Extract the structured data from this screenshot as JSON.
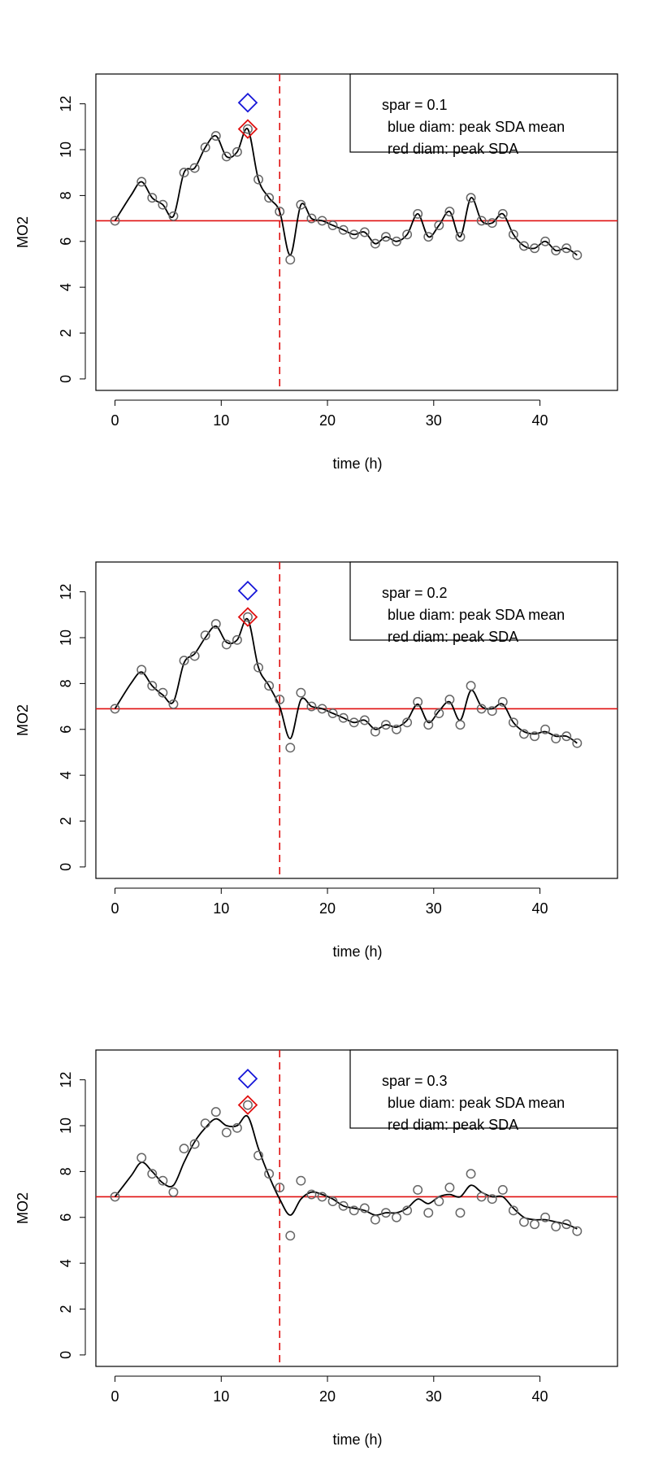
{
  "chart_data": [
    {
      "type": "scatter",
      "xlabel": "time (h)",
      "ylabel": "MO2",
      "xlim": [
        -1.8,
        47.3
      ],
      "ylim": [
        -0.5,
        13.3
      ],
      "x_ticks": [
        0,
        10,
        20,
        30,
        40
      ],
      "y_ticks": [
        0,
        2,
        4,
        6,
        8,
        10,
        12
      ],
      "legend_position": "top-right",
      "legend_lines": [
        "spar =  0.1",
        "blue diam: peak SDA mean",
        "red diam: peak SDA"
      ],
      "points": {
        "x": [
          0,
          2.5,
          3.5,
          4.5,
          5.5,
          6.5,
          7.5,
          8.5,
          9.5,
          10.5,
          11.5,
          12.5,
          13.5,
          14.5,
          15.5,
          16.5,
          17.5,
          18.5,
          19.5,
          20.5,
          21.5,
          22.5,
          23.5,
          24.5,
          25.5,
          26.5,
          27.5,
          28.5,
          29.5,
          30.5,
          31.5,
          32.5,
          33.5,
          34.5,
          35.5,
          36.5,
          37.5,
          38.5,
          39.5,
          40.5,
          41.5,
          42.5,
          43.5
        ],
        "y": [
          6.9,
          8.6,
          7.9,
          7.6,
          7.1,
          9.0,
          9.2,
          10.1,
          10.6,
          9.7,
          9.9,
          10.9,
          8.7,
          7.9,
          7.3,
          5.2,
          7.6,
          7.0,
          6.9,
          6.7,
          6.5,
          6.3,
          6.4,
          5.9,
          6.2,
          6.0,
          6.3,
          7.2,
          6.2,
          6.7,
          7.3,
          6.2,
          7.9,
          6.9,
          6.8,
          7.2,
          6.3,
          5.8,
          5.7,
          6.0,
          5.6,
          5.7,
          5.4
        ]
      },
      "smooth": {
        "x": [
          0,
          1.5,
          2.5,
          3.5,
          4.5,
          5.5,
          6.5,
          7.5,
          8.5,
          9.5,
          10.5,
          11.5,
          12.5,
          13.5,
          14.5,
          15.5,
          16.5,
          17.5,
          18.5,
          19.5,
          20.5,
          21.5,
          22.5,
          23.5,
          24.5,
          25.5,
          26.5,
          27.5,
          28.5,
          29.5,
          30.5,
          31.5,
          32.5,
          33.5,
          34.5,
          35.5,
          36.5,
          37.5,
          38.5,
          39.5,
          40.5,
          41.5,
          42.5,
          43.5
        ],
        "y": [
          6.9,
          8.0,
          8.6,
          7.9,
          7.6,
          7.1,
          9.0,
          9.2,
          10.1,
          10.6,
          9.7,
          9.9,
          10.9,
          8.7,
          7.9,
          7.3,
          5.4,
          7.6,
          7.0,
          6.9,
          6.7,
          6.5,
          6.3,
          6.4,
          5.9,
          6.2,
          6.0,
          6.3,
          7.2,
          6.2,
          6.7,
          7.3,
          6.2,
          7.9,
          6.9,
          6.8,
          7.2,
          6.3,
          5.8,
          5.7,
          6.0,
          5.6,
          5.7,
          5.4
        ]
      },
      "hline_y": 6.9,
      "vline_x": 15.5,
      "peak_sda_mean": {
        "x": 12.5,
        "y": 12.05
      },
      "peak_sda": {
        "x": 12.5,
        "y": 10.9
      }
    },
    {
      "type": "scatter",
      "xlabel": "time (h)",
      "ylabel": "MO2",
      "xlim": [
        -1.8,
        47.3
      ],
      "ylim": [
        -0.5,
        13.3
      ],
      "x_ticks": [
        0,
        10,
        20,
        30,
        40
      ],
      "y_ticks": [
        0,
        2,
        4,
        6,
        8,
        10,
        12
      ],
      "legend_position": "top-right",
      "legend_lines": [
        "spar =  0.2",
        "blue diam: peak SDA mean",
        "red diam: peak SDA"
      ],
      "points": {
        "x": [
          0,
          2.5,
          3.5,
          4.5,
          5.5,
          6.5,
          7.5,
          8.5,
          9.5,
          10.5,
          11.5,
          12.5,
          13.5,
          14.5,
          15.5,
          16.5,
          17.5,
          18.5,
          19.5,
          20.5,
          21.5,
          22.5,
          23.5,
          24.5,
          25.5,
          26.5,
          27.5,
          28.5,
          29.5,
          30.5,
          31.5,
          32.5,
          33.5,
          34.5,
          35.5,
          36.5,
          37.5,
          38.5,
          39.5,
          40.5,
          41.5,
          42.5,
          43.5
        ],
        "y": [
          6.9,
          8.6,
          7.9,
          7.6,
          7.1,
          9.0,
          9.2,
          10.1,
          10.6,
          9.7,
          9.9,
          10.9,
          8.7,
          7.9,
          7.3,
          5.2,
          7.6,
          7.0,
          6.9,
          6.7,
          6.5,
          6.3,
          6.4,
          5.9,
          6.2,
          6.0,
          6.3,
          7.2,
          6.2,
          6.7,
          7.3,
          6.2,
          7.9,
          6.9,
          6.8,
          7.2,
          6.3,
          5.8,
          5.7,
          6.0,
          5.6,
          5.7,
          5.4
        ]
      },
      "smooth": {
        "x": [
          0,
          1.5,
          2.5,
          3.5,
          4.5,
          5.5,
          6.5,
          7.5,
          8.5,
          9.5,
          10.5,
          11.5,
          12.5,
          13.5,
          14.5,
          15.5,
          16.5,
          17.5,
          18.5,
          19.5,
          20.5,
          21.5,
          22.5,
          23.5,
          24.5,
          25.5,
          26.5,
          27.5,
          28.5,
          29.5,
          30.5,
          31.5,
          32.5,
          33.5,
          34.5,
          35.5,
          36.5,
          37.5,
          38.5,
          39.5,
          40.5,
          41.5,
          42.5,
          43.5
        ],
        "y": [
          6.9,
          8.0,
          8.5,
          7.9,
          7.5,
          7.2,
          8.9,
          9.3,
          10.0,
          10.5,
          9.8,
          9.9,
          10.8,
          8.7,
          7.9,
          7.0,
          5.6,
          7.3,
          7.0,
          6.9,
          6.7,
          6.5,
          6.3,
          6.4,
          6.0,
          6.2,
          6.1,
          6.4,
          7.1,
          6.3,
          6.8,
          7.2,
          6.4,
          7.7,
          7.0,
          6.9,
          7.1,
          6.3,
          5.9,
          5.8,
          5.9,
          5.7,
          5.7,
          5.4
        ]
      },
      "hline_y": 6.9,
      "vline_x": 15.5,
      "peak_sda_mean": {
        "x": 12.5,
        "y": 12.05
      },
      "peak_sda": {
        "x": 12.5,
        "y": 10.9
      }
    },
    {
      "type": "scatter",
      "xlabel": "time (h)",
      "ylabel": "MO2",
      "xlim": [
        -1.8,
        47.3
      ],
      "ylim": [
        -0.5,
        13.3
      ],
      "x_ticks": [
        0,
        10,
        20,
        30,
        40
      ],
      "y_ticks": [
        0,
        2,
        4,
        6,
        8,
        10,
        12
      ],
      "legend_position": "top-right",
      "legend_lines": [
        "spar =  0.3",
        "blue diam: peak SDA mean",
        "red diam: peak SDA"
      ],
      "points": {
        "x": [
          0,
          2.5,
          3.5,
          4.5,
          5.5,
          6.5,
          7.5,
          8.5,
          9.5,
          10.5,
          11.5,
          12.5,
          13.5,
          14.5,
          15.5,
          16.5,
          17.5,
          18.5,
          19.5,
          20.5,
          21.5,
          22.5,
          23.5,
          24.5,
          25.5,
          26.5,
          27.5,
          28.5,
          29.5,
          30.5,
          31.5,
          32.5,
          33.5,
          34.5,
          35.5,
          36.5,
          37.5,
          38.5,
          39.5,
          40.5,
          41.5,
          42.5,
          43.5
        ],
        "y": [
          6.9,
          8.6,
          7.9,
          7.6,
          7.1,
          9.0,
          9.2,
          10.1,
          10.6,
          9.7,
          9.9,
          10.9,
          8.7,
          7.9,
          7.3,
          5.2,
          7.6,
          7.0,
          6.9,
          6.7,
          6.5,
          6.3,
          6.4,
          5.9,
          6.2,
          6.0,
          6.3,
          7.2,
          6.2,
          6.7,
          7.3,
          6.2,
          7.9,
          6.9,
          6.8,
          7.2,
          6.3,
          5.8,
          5.7,
          6.0,
          5.6,
          5.7,
          5.4
        ]
      },
      "smooth": {
        "x": [
          0,
          1.5,
          2.5,
          3.5,
          4.5,
          5.5,
          6.5,
          7.5,
          8.5,
          9.5,
          10.5,
          11.5,
          12.5,
          13.5,
          14.5,
          15.5,
          16.5,
          17.5,
          18.5,
          19.5,
          20.5,
          21.5,
          22.5,
          23.5,
          24.5,
          25.5,
          26.5,
          27.5,
          28.5,
          29.5,
          30.5,
          31.5,
          32.5,
          33.5,
          34.5,
          35.5,
          36.5,
          37.5,
          38.5,
          39.5,
          40.5,
          41.5,
          42.5,
          43.5
        ],
        "y": [
          6.9,
          7.8,
          8.4,
          8.0,
          7.5,
          7.4,
          8.4,
          9.3,
          9.9,
          10.3,
          10.0,
          10.0,
          10.4,
          9.0,
          7.8,
          6.8,
          6.1,
          6.8,
          7.1,
          7.0,
          6.8,
          6.5,
          6.4,
          6.3,
          6.1,
          6.2,
          6.2,
          6.4,
          6.8,
          6.6,
          6.9,
          7.0,
          6.9,
          7.4,
          7.1,
          6.9,
          6.9,
          6.4,
          6.0,
          5.9,
          5.9,
          5.8,
          5.7,
          5.5
        ]
      },
      "hline_y": 6.9,
      "vline_x": 15.5,
      "peak_sda_mean": {
        "x": 12.5,
        "y": 12.05
      },
      "peak_sda": {
        "x": 12.5,
        "y": 10.9
      }
    }
  ]
}
